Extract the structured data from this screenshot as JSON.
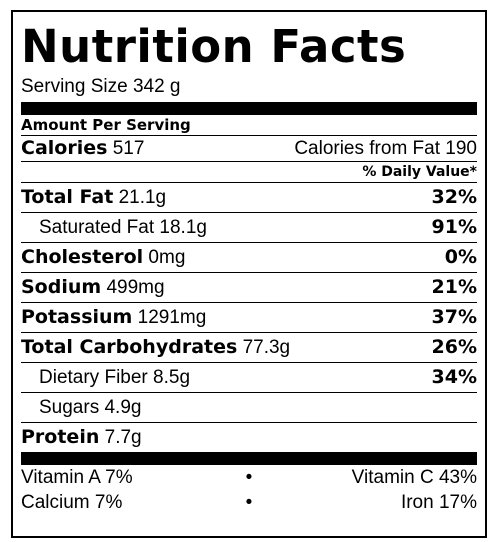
{
  "title": "Nutrition Facts",
  "serving": {
    "label": "Serving Size",
    "value": "342 g"
  },
  "amount_per_serving": "Amount Per Serving",
  "calories": {
    "label": "Calories",
    "value": "517",
    "fat_label": "Calories from Fat",
    "fat_value": "190"
  },
  "daily_value_header": "% Daily Value*",
  "nutrients": [
    {
      "label": "Total Fat",
      "amount": "21.1g",
      "dv": "32%"
    },
    {
      "label": "Saturated Fat",
      "amount": "18.1g",
      "dv": "91%"
    },
    {
      "label": "Cholesterol",
      "amount": "0mg",
      "dv": "0%"
    },
    {
      "label": "Sodium",
      "amount": "499mg",
      "dv": "21%"
    },
    {
      "label": "Potassium",
      "amount": "1291mg",
      "dv": "37%"
    },
    {
      "label": "Total Carbohydrates",
      "amount": "77.3g",
      "dv": "26%"
    },
    {
      "label": "Dietary Fiber",
      "amount": "8.5g",
      "dv": "34%"
    },
    {
      "label": "Sugars",
      "amount": "4.9g",
      "dv": ""
    },
    {
      "label": "Protein",
      "amount": "7.7g",
      "dv": ""
    }
  ],
  "vitamins": [
    {
      "left": "Vitamin A 7%",
      "bullet": "•",
      "right": "Vitamin C 43%"
    },
    {
      "left": "Calcium 7%",
      "bullet": "•",
      "right": "Iron 17%"
    }
  ]
}
